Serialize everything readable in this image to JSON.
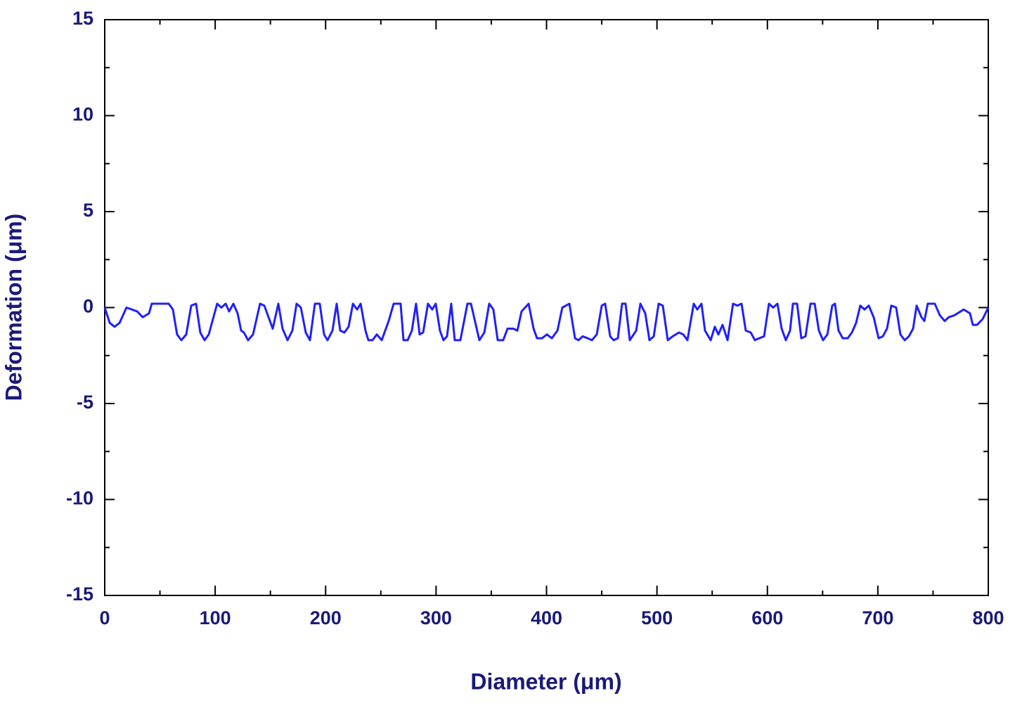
{
  "chart_data": {
    "type": "line",
    "xlabel": "Diameter (μm)",
    "ylabel": "Deformation (μm)",
    "color": "#1f1fff",
    "x": [
      0,
      4.5,
      8.9,
      13.4,
      19.7,
      29.3,
      34.4,
      40.1,
      42.6,
      51.5,
      57.9,
      61.7,
      65.5,
      69.4,
      73.8,
      78.3,
      82.7,
      86.5,
      90.4,
      94.2,
      101.8,
      105.6,
      109.5,
      112.6,
      116.5,
      120.3,
      123.5,
      126.0,
      129.8,
      134.3,
      140.6,
      144.5,
      152.1,
      157.2,
      161.0,
      165.5,
      169.9,
      173.7,
      177.6,
      182.0,
      185.8,
      190.3,
      194.7,
      198.6,
      201.7,
      206.2,
      210.0,
      213.2,
      217.0,
      220.8,
      224.7,
      228.5,
      231.7,
      236.1,
      238.7,
      242.5,
      246.3,
      250.8,
      257.1,
      261.6,
      267.9,
      270.5,
      274.3,
      278.1,
      281.9,
      285.1,
      288.3,
      292.7,
      296.5,
      299.7,
      303.5,
      306.7,
      309.9,
      313.7,
      316.9,
      322.0,
      328.4,
      331.6,
      339.2,
      343.7,
      348.1,
      351.9,
      355.8,
      360.8,
      364.7,
      369.8,
      373.6,
      377.4,
      383.8,
      388.3,
      391.4,
      395.9,
      400.4,
      404.8,
      409.9,
      414.3,
      420.7,
      425.8,
      429.0,
      432.8,
      437.3,
      441.1,
      445.5,
      450.0,
      453.1,
      457.6,
      460.8,
      464.6,
      468.4,
      471.6,
      475.4,
      481.2,
      485.0,
      489.4,
      493.2,
      497.1,
      501.5,
      505.3,
      509.8,
      514.2,
      519.9,
      523.8,
      527.6,
      533.3,
      536.5,
      540.3,
      543.5,
      548.6,
      552.4,
      555.6,
      559.4,
      563.9,
      568.9,
      572.8,
      576.6,
      580.4,
      584.9,
      588.7,
      592.5,
      597.0,
      601.4,
      605.2,
      609.1,
      612.9,
      616.7,
      620.5,
      623.1,
      626.9,
      630.7,
      634.5,
      639.0,
      642.8,
      646.6,
      650.4,
      654.3,
      658.7,
      661.2,
      664.4,
      668.2,
      672.7,
      676.5,
      680.3,
      684.1,
      688.0,
      691.8,
      696.2,
      700.7,
      704.5,
      708.3,
      712.2,
      716.6,
      720.4,
      724.3,
      728.1,
      731.9,
      735.1,
      739.5,
      742.1,
      745.2,
      751.6,
      756.1,
      760.5,
      764.3,
      769.4,
      777.7,
      783.4,
      786.0,
      789.8,
      794.9,
      800
    ],
    "values": [
      0,
      -0.8,
      -1.0,
      -0.8,
      0,
      -0.2,
      -0.5,
      -0.3,
      0.2,
      0.2,
      0.2,
      -0.1,
      -1.4,
      -1.7,
      -1.4,
      0.1,
      0.2,
      -1.3,
      -1.7,
      -1.4,
      0.2,
      0,
      0.2,
      -0.2,
      0.2,
      -0.3,
      -1.2,
      -1.3,
      -1.7,
      -1.4,
      0.2,
      0.1,
      -1.1,
      0.2,
      -1.1,
      -1.7,
      -1.2,
      0.2,
      0,
      -1.3,
      -1.7,
      0.2,
      0.2,
      -1.4,
      -1.7,
      -1.2,
      0.2,
      -1.2,
      -1.3,
      -1.0,
      0.2,
      -0.1,
      0.2,
      -1.2,
      -1.7,
      -1.7,
      -1.4,
      -1.7,
      -0.7,
      0.2,
      0.2,
      -1.7,
      -1.7,
      -1.2,
      0.2,
      -1.4,
      -1.3,
      0.2,
      -0.1,
      0.2,
      -1.2,
      -1.7,
      -1.5,
      0.2,
      -1.7,
      -1.7,
      0.2,
      0.2,
      -1.7,
      -1.3,
      0.2,
      -0.1,
      -1.7,
      -1.7,
      -1.1,
      -1.1,
      -1.2,
      -0.2,
      0.2,
      -1.1,
      -1.6,
      -1.6,
      -1.4,
      -1.6,
      -1.2,
      0,
      0.2,
      -1.6,
      -1.7,
      -1.5,
      -1.6,
      -1.7,
      -1.4,
      0.1,
      0.2,
      -1.5,
      -1.7,
      -1.6,
      0.2,
      0.2,
      -1.7,
      -1.2,
      0.2,
      -0.3,
      -1.7,
      -1.5,
      0.2,
      0.1,
      -1.7,
      -1.5,
      -1.3,
      -1.4,
      -1.7,
      0.2,
      -0.1,
      0.2,
      -1.2,
      -1.7,
      -1.0,
      -1.4,
      -0.9,
      -1.7,
      0.2,
      0.1,
      0.2,
      -1.2,
      -1.3,
      -1.7,
      -1.6,
      -1.5,
      0.2,
      0,
      0.2,
      -1.1,
      -1.7,
      -1.2,
      0.2,
      0.2,
      -1.6,
      -1.5,
      0.2,
      0.2,
      -1.2,
      -1.7,
      -1.4,
      0.1,
      0.2,
      -1.2,
      -1.6,
      -1.6,
      -1.3,
      -0.8,
      0.1,
      -0.1,
      0.1,
      -0.5,
      -1.6,
      -1.5,
      -1.1,
      0.1,
      0,
      -1.4,
      -1.7,
      -1.5,
      -1.1,
      0.1,
      -0.5,
      -0.7,
      0.2,
      0.2,
      -0.4,
      -0.7,
      -0.5,
      -0.4,
      -0.1,
      -0.3,
      -0.9,
      -0.9,
      -0.6,
      0
    ],
    "xlim": [
      0,
      800
    ],
    "xticks": [
      0,
      100,
      200,
      300,
      400,
      500,
      600,
      700,
      800
    ],
    "xminorticks": [
      50,
      150,
      250,
      350,
      450,
      550,
      650,
      750
    ],
    "ylim": [
      -15,
      15
    ],
    "yticks": [
      -15,
      -10,
      -5,
      0,
      5,
      10,
      15
    ],
    "yminorticks": [
      -12.5,
      -7.5,
      -2.5,
      2.5,
      7.5,
      12.5
    ]
  }
}
